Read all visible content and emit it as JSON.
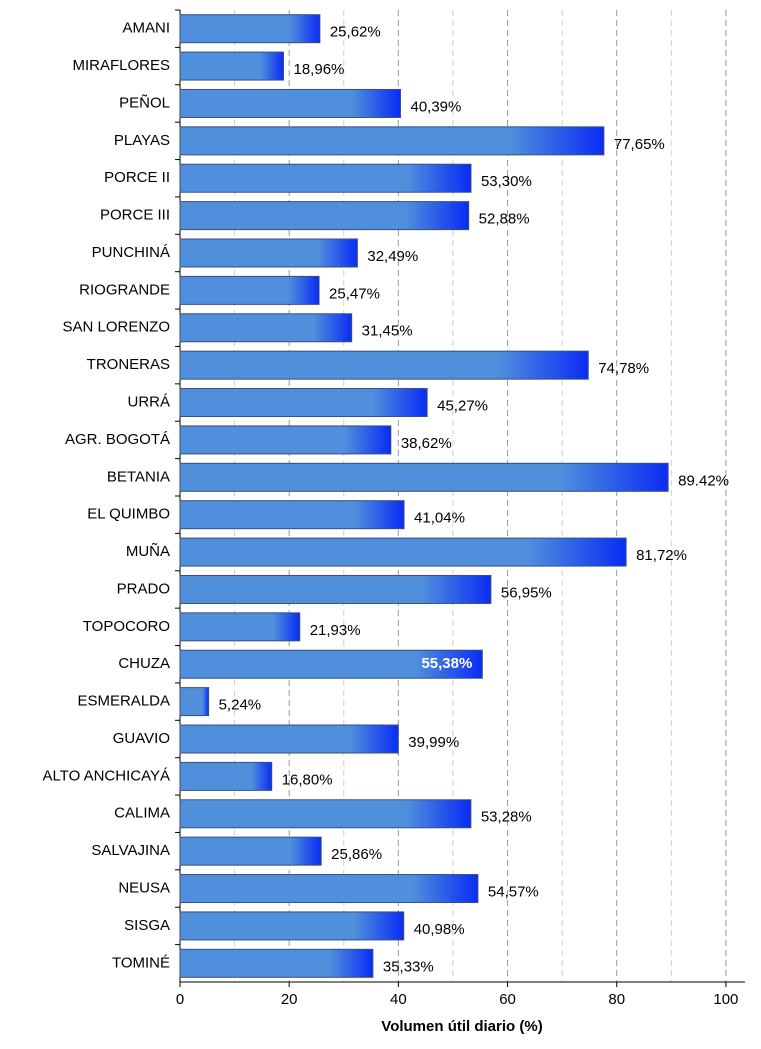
{
  "chart_data": {
    "type": "hbar",
    "x_label": "Volumen útil diario (%)",
    "categories": [
      "AMANI",
      "MIRAFLORES",
      "PEÑOL",
      "PLAYAS",
      "PORCE II",
      "PORCE III",
      "PUNCHINÁ",
      "RIOGRANDE",
      "SAN LORENZO",
      "TRONERAS",
      "URRÁ",
      "AGR. BOGOTÁ",
      "BETANIA",
      "EL QUIMBO",
      "MUÑA",
      "PRADO",
      "TOPOCORO",
      "CHUZA",
      "ESMERALDA",
      "GUAVIO",
      "ALTO ANCHICAYÁ",
      "CALIMA",
      "SALVAJINA",
      "NEUSA",
      "SISGA",
      "TOMINÉ"
    ],
    "values": [
      25.62,
      18.96,
      40.39,
      77.65,
      53.3,
      52.88,
      32.49,
      25.47,
      31.45,
      74.78,
      45.27,
      38.62,
      89.42,
      41.04,
      81.72,
      56.95,
      21.93,
      55.38,
      5.24,
      39.99,
      16.8,
      53.28,
      25.86,
      54.57,
      40.98,
      35.33
    ],
    "value_labels": [
      "25,62%",
      "18,96%",
      "40,39%",
      "77,65%",
      "53,30%",
      "52,88%",
      "32,49%",
      "25,47%",
      "31,45%",
      "74,78%",
      "45,27%",
      "38,62%",
      "89.42%",
      "41,04%",
      "81,72%",
      "56,95%",
      "21,93%",
      "55,38%",
      "5,24%",
      "39,99%",
      "16,80%",
      "53,28%",
      "25,86%",
      "54,57%",
      "40,98%",
      "35,33%"
    ],
    "highlight": 17,
    "color": "#4f8fdc",
    "end_color": "#0a2cf5",
    "xlim": [
      0,
      103.5
    ],
    "xticks": [
      0,
      20,
      40,
      60,
      80,
      100
    ],
    "minor_grid": [
      10,
      30,
      50,
      70,
      90
    ],
    "grid": true
  }
}
